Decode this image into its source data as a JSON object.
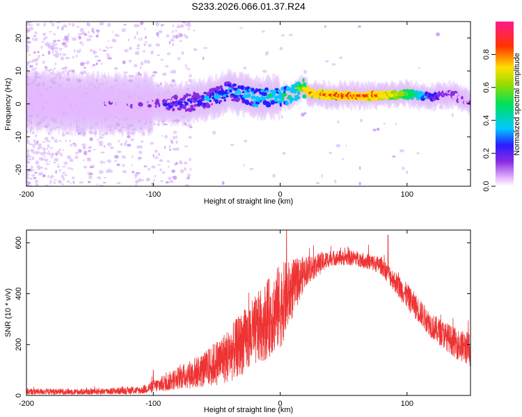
{
  "title": "S233.2026.066.01.37.R24",
  "chart_data": [
    {
      "type": "heatmap",
      "xlabel": "Height of straight line (km)",
      "ylabel": "Frequency (Hz)",
      "xlim": [
        -200,
        150
      ],
      "ylim": [
        -25,
        25
      ],
      "xticks": [
        -200,
        -100,
        0,
        100
      ],
      "yticks": [
        -20,
        -10,
        0,
        10,
        20
      ],
      "colorbar": {
        "label": "Normalized spectral amplitude",
        "range": [
          0,
          1
        ],
        "ticks": [
          "0.0",
          "0.2",
          "0.4",
          "0.6",
          "0.8"
        ]
      },
      "ridge": {
        "x": [
          -200,
          -150,
          -100,
          -80,
          -60,
          -40,
          -20,
          0,
          10,
          18,
          25,
          50,
          75,
          100,
          120,
          135,
          150
        ],
        "y": [
          1,
          0,
          0,
          0,
          1,
          4,
          2,
          2,
          3,
          5,
          3,
          2.5,
          2.5,
          3,
          2,
          3,
          0
        ],
        "amplitude": [
          0.15,
          0.15,
          0.25,
          0.35,
          0.4,
          0.45,
          0.5,
          0.55,
          0.6,
          0.75,
          0.9,
          0.92,
          0.9,
          0.7,
          0.35,
          0.25,
          0.2
        ]
      }
    },
    {
      "type": "line",
      "xlabel": "Height of straight line (km)",
      "ylabel": "SNR (10 * v/v)",
      "xlim": [
        -200,
        150
      ],
      "ylim": [
        0,
        650
      ],
      "xticks": [
        -200,
        -100,
        0,
        100
      ],
      "yticks": [
        0,
        200,
        400,
        600
      ],
      "series": [
        {
          "name": "SNR",
          "color": "#ee3333",
          "envelope_x": [
            -200,
            -150,
            -110,
            -100,
            -90,
            -80,
            -60,
            -40,
            -20,
            0,
            20,
            40,
            60,
            80,
            100,
            120,
            140,
            150
          ],
          "envelope_mean": [
            15,
            15,
            20,
            35,
            50,
            70,
            100,
            160,
            250,
            350,
            490,
            540,
            540,
            510,
            390,
            270,
            200,
            180
          ],
          "envelope_spread": [
            12,
            12,
            15,
            25,
            35,
            45,
            70,
            110,
            140,
            170,
            60,
            30,
            30,
            35,
            50,
            50,
            60,
            70
          ],
          "peaks": [
            {
              "x": 5,
              "y": 650
            },
            {
              "x": 85,
              "y": 630
            },
            {
              "x": -100,
              "y": 100
            }
          ]
        }
      ]
    }
  ]
}
